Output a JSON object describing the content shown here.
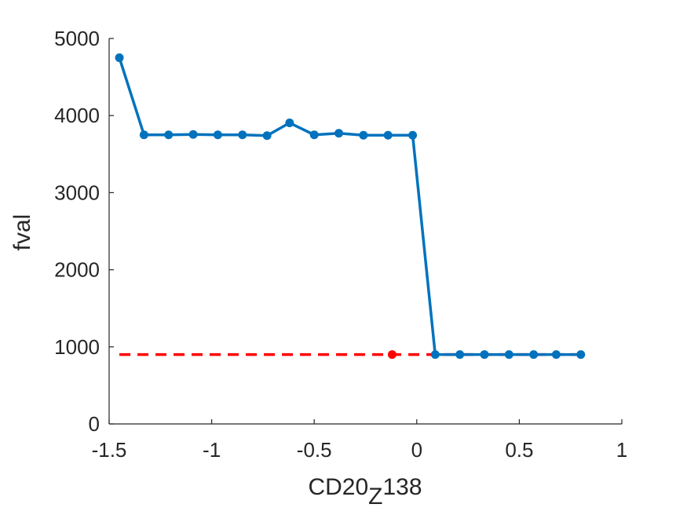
{
  "chart_data": {
    "type": "line",
    "title": "",
    "xlabel": {
      "main": "CD20",
      "subscript": "Z",
      "suffix": "138"
    },
    "ylabel": "fval",
    "xlim": [
      -1.5,
      1
    ],
    "ylim": [
      0,
      5000
    ],
    "xticks": [
      -1.5,
      -1,
      -0.5,
      0,
      0.5,
      1
    ],
    "xtick_labels": [
      "-1.5",
      "-1",
      "-0.5",
      "0",
      "0.5",
      "1"
    ],
    "yticks": [
      0,
      1000,
      2000,
      3000,
      4000,
      5000
    ],
    "ytick_labels": [
      "0",
      "1000",
      "2000",
      "3000",
      "4000",
      "5000"
    ],
    "grid": false,
    "legend": "none",
    "series": [
      {
        "style": "solid-line-with-markers",
        "color": "#0072BD",
        "x": [
          -1.45,
          -1.33,
          -1.21,
          -1.09,
          -0.97,
          -0.85,
          -0.73,
          -0.62,
          -0.5,
          -0.38,
          -0.26,
          -0.14,
          -0.02,
          0.09,
          0.21,
          0.33,
          0.45,
          0.57,
          0.68,
          0.8
        ],
        "y": [
          4750,
          3750,
          3750,
          3755,
          3750,
          3750,
          3740,
          3905,
          3750,
          3770,
          3745,
          3745,
          3745,
          900,
          900,
          900,
          900,
          900,
          900,
          900
        ]
      },
      {
        "style": "dashed-reference-line",
        "color": "#FF0000",
        "x": [
          -1.45,
          0.8
        ],
        "y": [
          900,
          900
        ]
      }
    ],
    "highlight_point": {
      "x": -0.12,
      "y": 900,
      "color": "#FF0000"
    }
  }
}
